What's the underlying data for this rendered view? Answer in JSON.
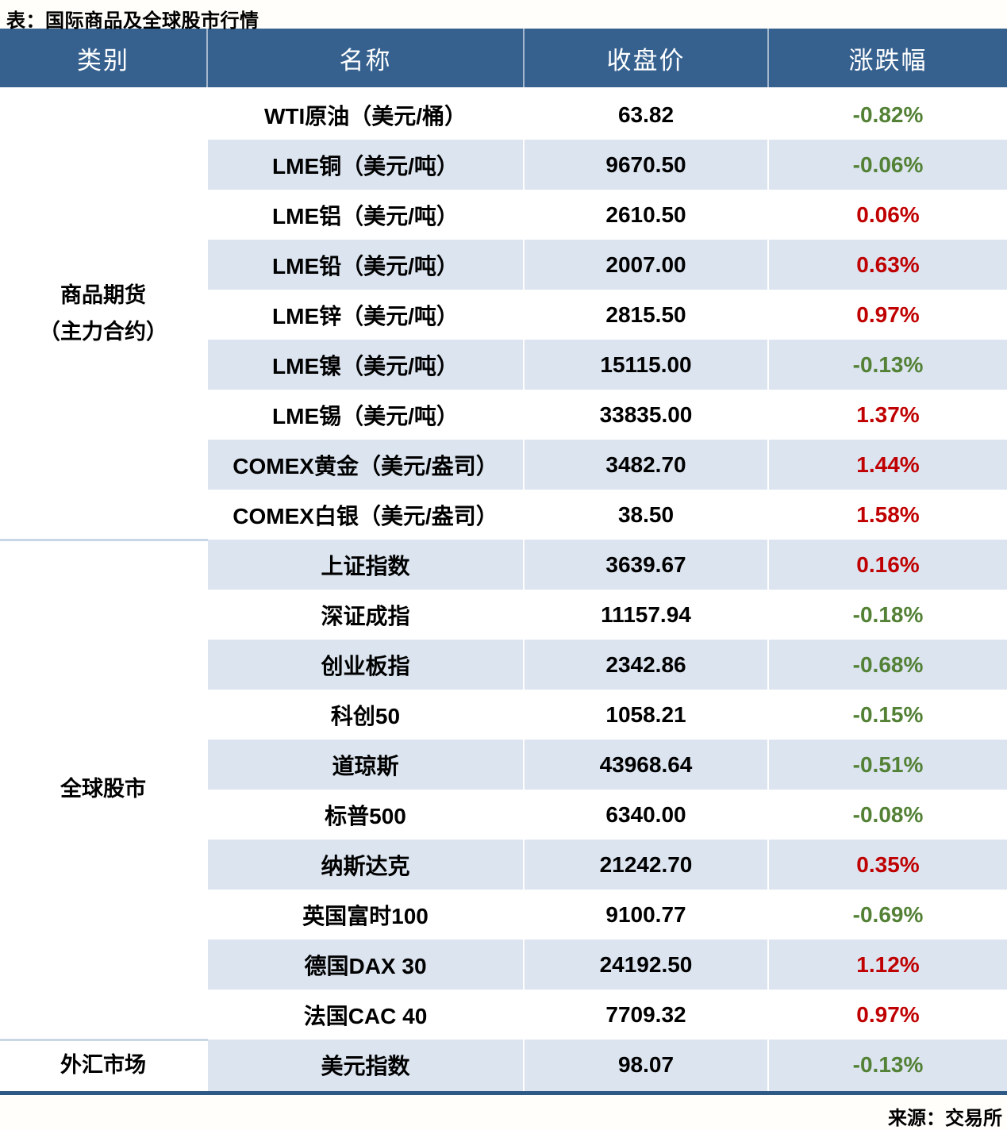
{
  "title": "表：国际商品及全球股市行情",
  "source": "来源：交易所",
  "colors": {
    "header_bg": "#36618F",
    "stripe_bg": "#DBE4EF",
    "up_red": "#C00000",
    "down_green": "#538135",
    "bottom_border": "#2D5984",
    "group_separator": "#C9D6E5"
  },
  "table": {
    "headers": [
      "类别",
      "名称",
      "收盘价",
      "涨跌幅"
    ],
    "groups": [
      {
        "category_lines": [
          "商品期货",
          "（主力合约）"
        ],
        "rows": [
          {
            "name": "WTI原油（美元/桶）",
            "close": "63.82",
            "change": "-0.82%"
          },
          {
            "name": "LME铜（美元/吨）",
            "close": "9670.50",
            "change": "-0.06%"
          },
          {
            "name": "LME铝（美元/吨）",
            "close": "2610.50",
            "change": "0.06%"
          },
          {
            "name": "LME铅（美元/吨）",
            "close": "2007.00",
            "change": "0.63%"
          },
          {
            "name": "LME锌（美元/吨）",
            "close": "2815.50",
            "change": "0.97%"
          },
          {
            "name": "LME镍（美元/吨）",
            "close": "15115.00",
            "change": "-0.13%"
          },
          {
            "name": "LME锡（美元/吨）",
            "close": "33835.00",
            "change": "1.37%"
          },
          {
            "name": "COMEX黄金（美元/盎司）",
            "close": "3482.70",
            "change": "1.44%"
          },
          {
            "name": "COMEX白银（美元/盎司）",
            "close": "38.50",
            "change": "1.58%"
          }
        ]
      },
      {
        "category_lines": [
          "全球股市"
        ],
        "rows": [
          {
            "name": "上证指数",
            "close": "3639.67",
            "change": "0.16%"
          },
          {
            "name": "深证成指",
            "close": "11157.94",
            "change": "-0.18%"
          },
          {
            "name": "创业板指",
            "close": "2342.86",
            "change": "-0.68%"
          },
          {
            "name": "科创50",
            "close": "1058.21",
            "change": "-0.15%"
          },
          {
            "name": "道琼斯",
            "close": "43968.64",
            "change": "-0.51%"
          },
          {
            "name": "标普500",
            "close": "6340.00",
            "change": "-0.08%"
          },
          {
            "name": "纳斯达克",
            "close": "21242.70",
            "change": "0.35%"
          },
          {
            "name": "英国富时100",
            "close": "9100.77",
            "change": "-0.69%"
          },
          {
            "name": "德国DAX 30",
            "close": "24192.50",
            "change": "1.12%"
          },
          {
            "name": "法国CAC 40",
            "close": "7709.32",
            "change": "0.97%"
          }
        ]
      },
      {
        "category_lines": [
          "外汇市场"
        ],
        "rows": [
          {
            "name": "美元指数",
            "close": "98.07",
            "change": "-0.13%"
          }
        ]
      }
    ]
  },
  "chart_data": {
    "type": "table",
    "title": "表：国际商品及全球股市行情",
    "columns": [
      "类别",
      "名称",
      "收盘价",
      "涨跌幅"
    ],
    "rows": [
      [
        "商品期货（主力合约）",
        "WTI原油（美元/桶）",
        63.82,
        "-0.82%"
      ],
      [
        "商品期货（主力合约）",
        "LME铜（美元/吨）",
        9670.5,
        "-0.06%"
      ],
      [
        "商品期货（主力合约）",
        "LME铝（美元/吨）",
        2610.5,
        "0.06%"
      ],
      [
        "商品期货（主力合约）",
        "LME铅（美元/吨）",
        2007.0,
        "0.63%"
      ],
      [
        "商品期货（主力合约）",
        "LME锌（美元/吨）",
        2815.5,
        "0.97%"
      ],
      [
        "商品期货（主力合约）",
        "LME镍（美元/吨）",
        15115.0,
        "-0.13%"
      ],
      [
        "商品期货（主力合约）",
        "LME锡（美元/吨）",
        33835.0,
        "1.37%"
      ],
      [
        "商品期货（主力合约）",
        "COMEX黄金（美元/盎司）",
        3482.7,
        "1.44%"
      ],
      [
        "商品期货（主力合约）",
        "COMEX白银（美元/盎司）",
        38.5,
        "1.58%"
      ],
      [
        "全球股市",
        "上证指数",
        3639.67,
        "0.16%"
      ],
      [
        "全球股市",
        "深证成指",
        11157.94,
        "-0.18%"
      ],
      [
        "全球股市",
        "创业板指",
        2342.86,
        "-0.68%"
      ],
      [
        "全球股市",
        "科创50",
        1058.21,
        "-0.15%"
      ],
      [
        "全球股市",
        "道琼斯",
        43968.64,
        "-0.51%"
      ],
      [
        "全球股市",
        "标普500",
        6340.0,
        "-0.08%"
      ],
      [
        "全球股市",
        "纳斯达克",
        21242.7,
        "0.35%"
      ],
      [
        "全球股市",
        "英国富时100",
        9100.77,
        "-0.69%"
      ],
      [
        "全球股市",
        "德国DAX 30",
        24192.5,
        "1.12%"
      ],
      [
        "全球股市",
        "法国CAC 40",
        7709.32,
        "0.97%"
      ],
      [
        "外汇市场",
        "美元指数",
        98.07,
        "-0.13%"
      ]
    ],
    "source": "来源：交易所",
    "color_convention": "positive change = red, negative change = green"
  }
}
